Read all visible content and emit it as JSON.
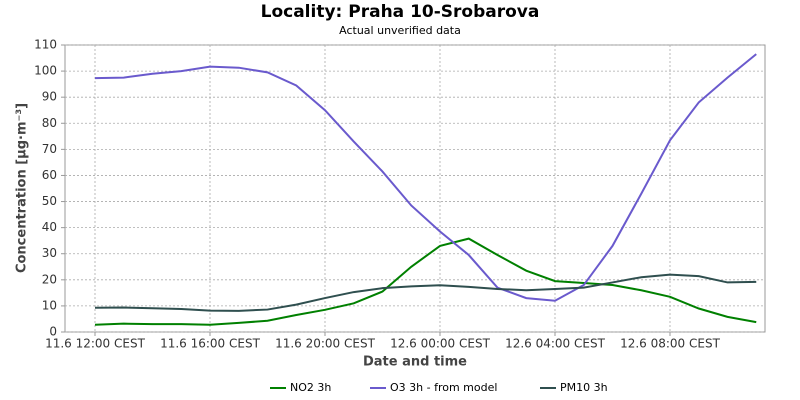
{
  "chart_data": {
    "type": "line",
    "title": "Locality: Praha 10-Srobarova",
    "subtitle": "Actual unverified data",
    "x_label": "Date and time",
    "y_label": "Concentration [µg·m⁻³]",
    "categories": [
      "11.6 12:00 CEST",
      null,
      null,
      null,
      "11.6 16:00 CEST",
      null,
      null,
      null,
      "11.6 20:00 CEST",
      null,
      null,
      null,
      "12.6 00:00 CEST",
      null,
      null,
      null,
      "12.6 04:00 CEST",
      null,
      null,
      null,
      "12.6 08:00 CEST",
      null,
      null,
      null
    ],
    "series": [
      {
        "name": "NO2 3h",
        "color": "#008000",
        "values": [
          2.8,
          3.2,
          3.0,
          3.0,
          2.8,
          3.5,
          4.3,
          6.5,
          8.5,
          11,
          15.5,
          25,
          33,
          35.8,
          29.5,
          23.5,
          19.5,
          18.8,
          18,
          16,
          13.5,
          9,
          5.8,
          3.8
        ]
      },
      {
        "name": "O3 3h - from model",
        "color": "#6a5acd",
        "values": [
          97.3,
          97.5,
          99,
          100,
          101.7,
          101.3,
          99.5,
          94.5,
          85,
          73,
          61.5,
          48.5,
          38.5,
          29.5,
          17,
          13,
          12,
          18,
          33,
          53,
          73.5,
          88,
          97.5,
          106.5
        ]
      },
      {
        "name": "PM10 3h",
        "color": "#2f4f4f",
        "values": [
          9.3,
          9.4,
          9.1,
          8.8,
          8.2,
          8.1,
          8.6,
          10.5,
          13,
          15.3,
          16.8,
          17.5,
          17.9,
          17.3,
          16.5,
          16,
          16.5,
          17,
          19,
          21,
          22,
          21.4,
          19,
          19.2
        ]
      }
    ],
    "ylim": [
      0,
      110
    ],
    "yticks": [
      0,
      10,
      20,
      30,
      40,
      50,
      60,
      70,
      80,
      90,
      100,
      110
    ],
    "grid": true,
    "legend": "bottom"
  }
}
